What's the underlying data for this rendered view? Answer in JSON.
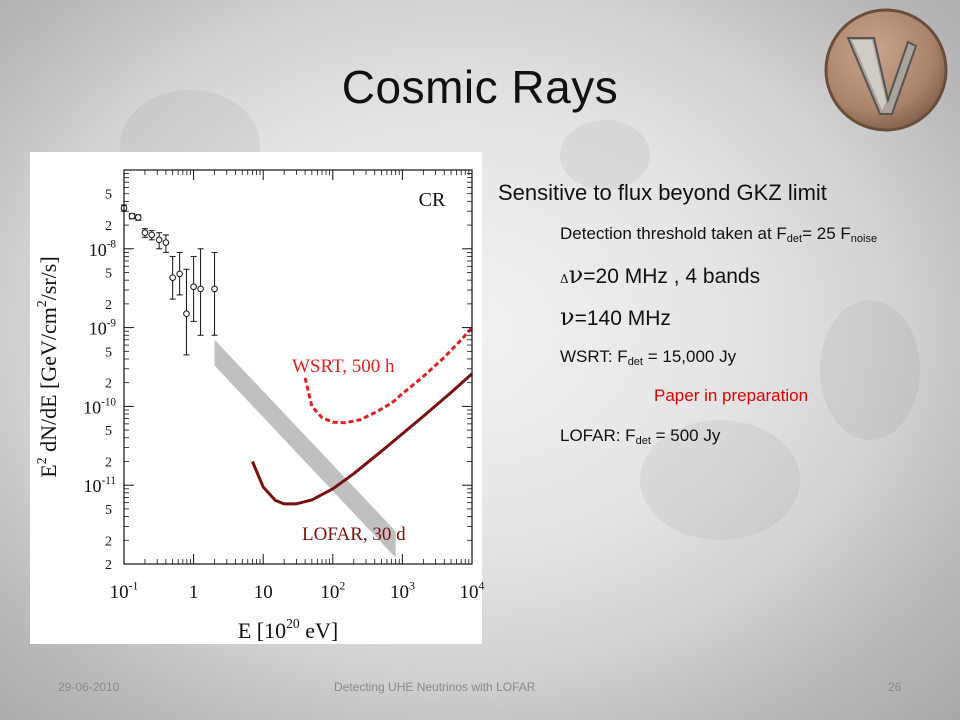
{
  "slide": {
    "title": "Cosmic Rays",
    "footer": {
      "date": "29-06-2010",
      "talk": "Detecting UHE Neutrinos with LOFAR",
      "page": "26"
    }
  },
  "content": {
    "heading": "Sensitive to flux beyond GKZ limit",
    "threshold_text": "Detection threshold taken at F",
    "threshold_sub1": "det",
    "threshold_mid": "= 25 F",
    "threshold_sub2": "noise",
    "delta_symbol": "Δ",
    "nu_symbol": "ν",
    "bandwidth_text": "=20 MHz , 4 bands",
    "freq_text": "=140 MHz",
    "wsrt_prefix": "WSRT: F",
    "wsrt_sub": "det",
    "wsrt_value": " = 15,000 Jy",
    "paper_note": "Paper in preparation",
    "lofar_prefix": "LOFAR: F",
    "lofar_sub": "det",
    "lofar_value": " = 500 Jy"
  },
  "logo": {
    "icon": "nu-letter-logo-icon",
    "fill": "#b08a70"
  },
  "chart_data": {
    "type": "line",
    "xlabel_base": "E [10",
    "xlabel_exp": "20",
    "xlabel_tail": " eV]",
    "ylabel_base": "E",
    "ylabel_exp": "2",
    "ylabel_tail": " dN/dE [GeV/cm",
    "ylabel_exp2": "2",
    "ylabel_tail2": "/sr/s]",
    "x_log_range": [
      -1,
      4
    ],
    "y_log_range": [
      -12,
      -7
    ],
    "x_ticks": [
      {
        "base": "10",
        "exp": "-1",
        "value": -1
      },
      {
        "base": "1",
        "exp": "",
        "value": 0
      },
      {
        "base": "10",
        "exp": "",
        "value": 1
      },
      {
        "base": "10",
        "exp": "2",
        "value": 2
      },
      {
        "base": "10",
        "exp": "3",
        "value": 3
      },
      {
        "base": "10",
        "exp": "4",
        "value": 4
      }
    ],
    "y_major_ticks": [
      {
        "base": "10",
        "exp": "-8",
        "value": -8
      },
      {
        "base": "10",
        "exp": "-9",
        "value": -9
      },
      {
        "base": "10",
        "exp": "-10",
        "value": -10
      },
      {
        "base": "10",
        "exp": "-11",
        "value": -11
      }
    ],
    "y_minor_labels": [
      "5",
      "2",
      "5",
      "2",
      "5",
      "2",
      "5",
      "2",
      "5",
      "2"
    ],
    "y_minor_values": [
      -7.301,
      -7.699,
      -8.301,
      -8.699,
      -9.301,
      -9.699,
      -10.301,
      -10.699,
      -11.301,
      -11.699
    ],
    "annotations": {
      "cr": "CR",
      "wsrt": "WSRT, 500 h",
      "lofar": "LOFAR, 30 d"
    },
    "cr_points": [
      {
        "x": 0.1,
        "y": 3.3e-08,
        "yerr": [
          3e-08,
          3.6e-08
        ]
      },
      {
        "x": 0.13,
        "y": 2.6e-08,
        "yerr": [
          2.4e-08,
          2.8e-08
        ]
      },
      {
        "x": 0.16,
        "y": 2.5e-08,
        "yerr": [
          2.3e-08,
          2.7e-08
        ]
      },
      {
        "x": 0.2,
        "y": 1.6e-08,
        "yerr": [
          1.4e-08,
          1.8e-08
        ]
      },
      {
        "x": 0.25,
        "y": 1.5e-08,
        "yerr": [
          1.3e-08,
          1.7e-08
        ]
      },
      {
        "x": 0.32,
        "y": 1.3e-08,
        "yerr": [
          1e-08,
          1.6e-08
        ]
      },
      {
        "x": 0.4,
        "y": 1.2e-08,
        "yerr": [
          9e-09,
          1.5e-08
        ]
      },
      {
        "x": 0.5,
        "y": 4.3e-09,
        "yerr": [
          2.3e-09,
          8e-09
        ]
      },
      {
        "x": 0.63,
        "y": 4.8e-09,
        "yerr": [
          2.6e-09,
          9e-09
        ]
      },
      {
        "x": 0.79,
        "y": 1.5e-09,
        "yerr": [
          4.5e-10,
          5.5e-09
        ]
      },
      {
        "x": 1.0,
        "y": 3.3e-09,
        "yerr": [
          1.2e-09,
          8e-09
        ]
      },
      {
        "x": 1.26,
        "y": 3.1e-09,
        "yerr": [
          8e-10,
          1e-08
        ]
      },
      {
        "x": 2.0,
        "y": 3.1e-09,
        "yerr": [
          8e-10,
          9e-09
        ]
      }
    ],
    "gzk_band": {
      "color": "#c0c0c0",
      "upper": [
        [
          2.0,
          7e-10
        ],
        [
          800,
          2.6e-12
        ]
      ],
      "lower": [
        [
          2.0,
          3.3e-10
        ],
        [
          800,
          1.2e-12
        ]
      ]
    },
    "series": [
      {
        "name": "WSRT, 500 h",
        "color": "#e02020",
        "dashed": true,
        "x": [
          40,
          50,
          70,
          100,
          150,
          250,
          400,
          700,
          1000,
          2000,
          4000,
          7000,
          10000
        ],
        "y": [
          2.3e-10,
          1e-10,
          7.2e-11,
          6.3e-11,
          6.2e-11,
          6.8e-11,
          8.3e-11,
          1.1e-10,
          1.45e-10,
          2.4e-10,
          4.2e-10,
          7e-10,
          1e-09
        ]
      },
      {
        "name": "LOFAR, 30 d",
        "color": "#7a0f0f",
        "dashed": false,
        "x": [
          7,
          10,
          15,
          20,
          30,
          50,
          100,
          200,
          500,
          1000,
          2000,
          5000,
          10000
        ],
        "y": [
          2e-11,
          9.5e-12,
          6.4e-12,
          5.8e-12,
          5.8e-12,
          6.5e-12,
          9e-12,
          1.4e-11,
          2.7e-11,
          4.5e-11,
          7.5e-11,
          1.5e-10,
          2.6e-10
        ]
      }
    ]
  }
}
